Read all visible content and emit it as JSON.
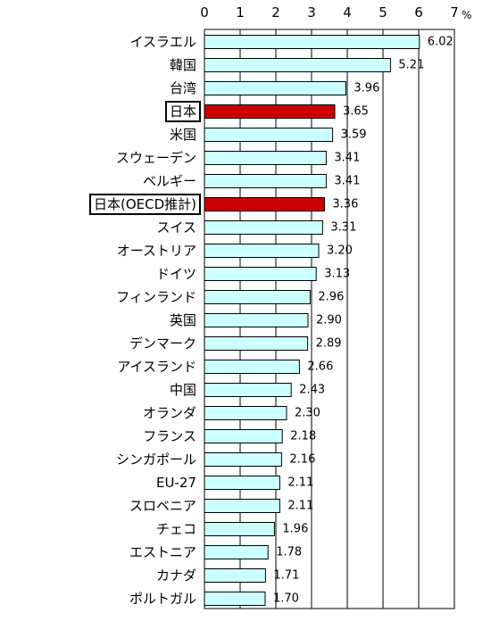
{
  "chart_data": {
    "type": "bar",
    "orientation": "horizontal",
    "unit": "%",
    "xlim": [
      0,
      7
    ],
    "ticks": [
      "0",
      "1",
      "2",
      "3",
      "4",
      "5",
      "6",
      "7"
    ],
    "grid": true,
    "categories": [
      "イスラエル",
      "韓国",
      "台湾",
      "日本",
      "米国",
      "スウェーデン",
      "ベルギー",
      "日本(OECD推計)",
      "スイス",
      "オーストリア",
      "ドイツ",
      "フィンランド",
      "英国",
      "デンマーク",
      "アイスランド",
      "中国",
      "オランダ",
      "フランス",
      "シンガポール",
      "EU-27",
      "スロベニア",
      "チェコ",
      "エストニア",
      "カナダ",
      "ポルトガル"
    ],
    "values": [
      6.02,
      5.21,
      3.96,
      3.65,
      3.59,
      3.41,
      3.41,
      3.36,
      3.31,
      3.2,
      3.13,
      2.96,
      2.9,
      2.89,
      2.66,
      2.43,
      2.3,
      2.18,
      2.16,
      2.11,
      2.11,
      1.96,
      1.78,
      1.71,
      1.7
    ],
    "value_labels": [
      "6.02",
      "5.21",
      "3.96",
      "3.65",
      "3.59",
      "3.41",
      "3.41",
      "3.36",
      "3.31",
      "3.20",
      "3.13",
      "2.96",
      "2.90",
      "2.89",
      "2.66",
      "2.43",
      "2.30",
      "2.18",
      "2.16",
      "2.11",
      "2.11",
      "1.96",
      "1.78",
      "1.71",
      "1.70"
    ],
    "highlighted": [
      "日本",
      "日本(OECD推計)"
    ],
    "colors": {
      "bar_fill": "#ccffff",
      "bar_highlight": "#cc0000",
      "bar_stroke": "#000000",
      "grid": "#000000"
    }
  }
}
